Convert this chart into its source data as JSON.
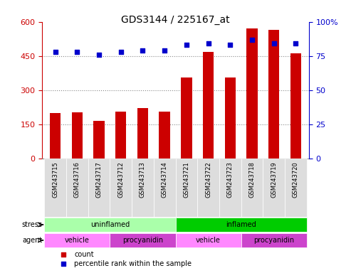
{
  "title": "GDS3144 / 225167_at",
  "samples": [
    "GSM243715",
    "GSM243716",
    "GSM243717",
    "GSM243712",
    "GSM243713",
    "GSM243714",
    "GSM243721",
    "GSM243722",
    "GSM243723",
    "GSM243718",
    "GSM243719",
    "GSM243720"
  ],
  "counts": [
    200,
    203,
    165,
    205,
    220,
    205,
    355,
    468,
    355,
    570,
    565,
    462
  ],
  "percentile": [
    78,
    78,
    76,
    78,
    79,
    79,
    83,
    84,
    83,
    87,
    84,
    84
  ],
  "ylim_left": [
    0,
    600
  ],
  "ylim_right": [
    0,
    100
  ],
  "yticks_left": [
    0,
    150,
    300,
    450,
    600
  ],
  "yticks_right": [
    0,
    25,
    50,
    75,
    100
  ],
  "bar_color": "#cc0000",
  "dot_color": "#0000cc",
  "stress_groups": [
    {
      "label": "uninflamed",
      "start": 0,
      "end": 6,
      "color": "#aaffaa"
    },
    {
      "label": "inflamed",
      "start": 6,
      "end": 12,
      "color": "#00cc00"
    }
  ],
  "agent_groups": [
    {
      "label": "vehicle",
      "start": 0,
      "end": 3,
      "color": "#ff88ff"
    },
    {
      "label": "procyanidin",
      "start": 3,
      "end": 6,
      "color": "#cc44cc"
    },
    {
      "label": "vehicle",
      "start": 6,
      "end": 9,
      "color": "#ff88ff"
    },
    {
      "label": "procyanidin",
      "start": 9,
      "end": 12,
      "color": "#cc44cc"
    }
  ],
  "legend_count_color": "#cc0000",
  "legend_pct_color": "#0000cc",
  "grid_color": "#888888",
  "bg_color": "#ffffff",
  "tick_label_gray": "#bbbbbb"
}
